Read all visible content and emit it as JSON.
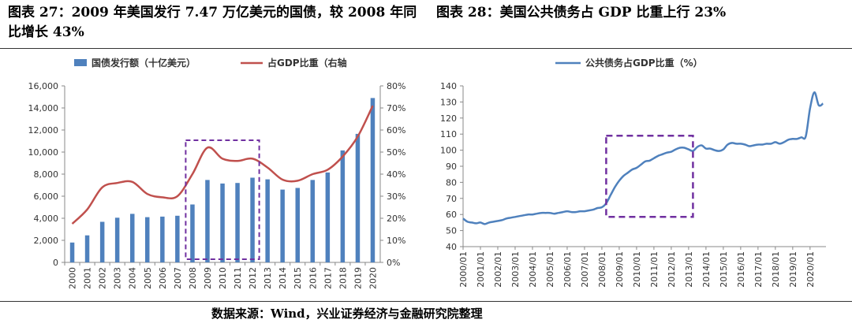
{
  "titles": {
    "left": "图表 27：2009 年美国发行 7.47 万亿美元的国债，较 2008 年同比增长 43%",
    "right": "图表 28：美国公共债务占 GDP 比重上行 23%"
  },
  "source": "数据来源：Wind，兴业证券经济与金融研究院整理",
  "chart_data": [
    {
      "type": "bar",
      "categories": [
        "2000",
        "2001",
        "2002",
        "2003",
        "2004",
        "2005",
        "2006",
        "2007",
        "2008",
        "2009",
        "2010",
        "2011",
        "2012",
        "2013",
        "2014",
        "2015",
        "2016",
        "2017",
        "2018",
        "2019",
        "2020"
      ],
      "series": [
        {
          "name": "国债发行额（十亿美元）",
          "type": "bar",
          "axis": "left",
          "color": "#4f81bd",
          "values": [
            1800,
            2450,
            3680,
            4050,
            4400,
            4100,
            4150,
            4230,
            5250,
            7470,
            7150,
            7200,
            7680,
            7530,
            6600,
            6750,
            7470,
            8150,
            10150,
            11650,
            14900
          ]
        },
        {
          "name": "占GDP比重（右轴",
          "type": "line",
          "axis": "right",
          "color": "#c0504d",
          "values": [
            17.5,
            24,
            34,
            36,
            36.5,
            31,
            29.5,
            30,
            40,
            52,
            47,
            46,
            47,
            43,
            37.5,
            37,
            40,
            42,
            48,
            57,
            71
          ]
        }
      ],
      "y_left": {
        "min": 0,
        "max": 16000,
        "ticks": [
          "0",
          "2,000",
          "4,000",
          "6,000",
          "8,000",
          "10,000",
          "12,000",
          "14,000",
          "16,000"
        ]
      },
      "y_right": {
        "min": 0,
        "max": 80,
        "ticks": [
          "0%",
          "10%",
          "20%",
          "30%",
          "40%",
          "50%",
          "60%",
          "70%",
          "80%"
        ]
      },
      "highlight": {
        "from": "2008",
        "to": "2012"
      },
      "legend": "top",
      "grid": false
    },
    {
      "type": "line",
      "series": [
        {
          "name": "公共债务占GDP比重（%）",
          "color": "#4f81bd",
          "x": [
            "2000/01",
            "2000/04",
            "2000/07",
            "2000/10",
            "2001/01",
            "2001/04",
            "2001/07",
            "2001/10",
            "2002/01",
            "2002/04",
            "2002/07",
            "2002/10",
            "2003/01",
            "2003/04",
            "2003/07",
            "2003/10",
            "2004/01",
            "2004/04",
            "2004/07",
            "2004/10",
            "2005/01",
            "2005/04",
            "2005/07",
            "2005/10",
            "2006/01",
            "2006/04",
            "2006/07",
            "2006/10",
            "2007/01",
            "2007/04",
            "2007/07",
            "2007/10",
            "2008/01",
            "2008/04",
            "2008/07",
            "2008/10",
            "2009/01",
            "2009/04",
            "2009/07",
            "2009/10",
            "2010/01",
            "2010/04",
            "2010/07",
            "2010/10",
            "2011/01",
            "2011/04",
            "2011/07",
            "2011/10",
            "2012/01",
            "2012/04",
            "2012/07",
            "2012/10",
            "2013/01",
            "2013/04",
            "2013/07",
            "2013/10",
            "2014/01",
            "2014/04",
            "2014/07",
            "2014/10",
            "2015/01",
            "2015/04",
            "2015/07",
            "2015/10",
            "2016/01",
            "2016/04",
            "2016/07",
            "2016/10",
            "2017/01",
            "2017/04",
            "2017/07",
            "2017/10",
            "2018/01",
            "2018/04",
            "2018/07",
            "2018/10",
            "2019/01",
            "2019/04",
            "2019/07",
            "2019/10",
            "2020/01",
            "2020/04",
            "2020/07",
            "2020/10"
          ],
          "values": [
            57.5,
            55.5,
            55,
            54.5,
            55,
            54,
            55,
            55.5,
            56,
            56.5,
            57.5,
            58,
            58.5,
            59,
            59.5,
            60,
            60,
            60.5,
            61,
            61,
            61,
            60.5,
            61,
            61.5,
            62,
            61.5,
            61.5,
            62,
            62,
            62.5,
            63,
            64,
            64.5,
            67,
            72,
            77,
            81,
            84,
            86,
            88,
            89,
            91,
            93,
            93.5,
            95,
            96.5,
            97.5,
            98.5,
            99,
            100.5,
            101.5,
            101.5,
            100.5,
            99.5,
            102,
            103,
            101,
            101,
            100,
            99.5,
            100.5,
            103.5,
            104.5,
            104,
            104,
            103.5,
            102.5,
            103,
            103.5,
            103.5,
            104,
            104,
            105,
            104,
            105,
            106.5,
            107,
            107,
            108,
            108.5,
            126,
            136,
            128,
            129
          ]
        }
      ],
      "x_tick_labels": [
        "2000/01",
        "2001/01",
        "2002/01",
        "2003/01",
        "2004/01",
        "2005/01",
        "2006/01",
        "2007/01",
        "2008/01",
        "2009/01",
        "2010/01",
        "2011/01",
        "2012/01",
        "2013/01",
        "2014/01",
        "2015/01",
        "2016/01",
        "2017/01",
        "2018/01",
        "2019/01",
        "2020/01"
      ],
      "ylim": [
        40,
        140
      ],
      "y_ticks": [
        "40",
        "50",
        "60",
        "70",
        "80",
        "90",
        "100",
        "110",
        "120",
        "130",
        "140"
      ],
      "highlight": {
        "x_from": "2008/04",
        "x_to": "2013/04",
        "y_from": 58.5,
        "y_to": 109
      },
      "legend": "top",
      "grid": false
    }
  ]
}
